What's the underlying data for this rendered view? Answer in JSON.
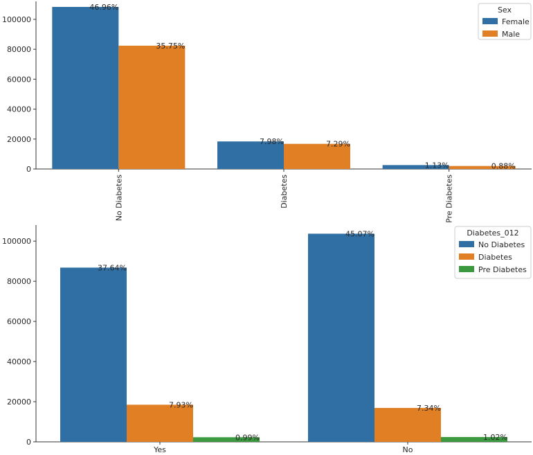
{
  "colors": {
    "blue": "#2f6fa3",
    "orange": "#e07f24",
    "green": "#3b9a3f",
    "axis": "#333333",
    "legend_border": "#cccccc"
  },
  "chart_data": [
    {
      "type": "bar",
      "title": "",
      "xlabel": "",
      "ylabel": "",
      "categories": [
        "No Diabetes",
        "Diabetes",
        "Pre Diabetes"
      ],
      "category_label_rotation": "vertical",
      "ylim": [
        0,
        112000
      ],
      "yticks": [
        0,
        20000,
        40000,
        60000,
        80000,
        100000
      ],
      "ytick_labels": [
        "0",
        "20000",
        "40000",
        "60000",
        "80000",
        "100000"
      ],
      "legend": {
        "title": "Sex",
        "position": "top-right"
      },
      "series": [
        {
          "name": "Female",
          "color_key": "blue",
          "values": [
            108300,
            18400,
            2600
          ],
          "labels": [
            "46.96%",
            "7.98%",
            "1.13%"
          ]
        },
        {
          "name": "Male",
          "color_key": "orange",
          "values": [
            82400,
            16800,
            2000
          ],
          "labels": [
            "35.75%",
            "7.29%",
            "0.88%"
          ]
        }
      ]
    },
    {
      "type": "bar",
      "title": "",
      "xlabel": "",
      "ylabel": "",
      "categories": [
        "Yes",
        "No"
      ],
      "category_label_rotation": "horizontal",
      "ylim": [
        0,
        108000
      ],
      "yticks": [
        0,
        20000,
        40000,
        60000,
        80000,
        100000
      ],
      "ytick_labels": [
        "0",
        "20000",
        "40000",
        "60000",
        "80000",
        "100000"
      ],
      "legend": {
        "title": "Diabetes_012",
        "position": "top-right"
      },
      "series": [
        {
          "name": "No Diabetes",
          "color_key": "blue",
          "values": [
            86800,
            103700
          ],
          "labels": [
            "37.64%",
            "45.07%"
          ]
        },
        {
          "name": "Diabetes",
          "color_key": "orange",
          "values": [
            18500,
            16900
          ],
          "labels": [
            "7.93%",
            "7.34%"
          ]
        },
        {
          "name": "Pre Diabetes",
          "color_key": "green",
          "values": [
            2300,
            2400
          ],
          "labels": [
            "0.99%",
            "1.02%"
          ]
        }
      ]
    }
  ]
}
